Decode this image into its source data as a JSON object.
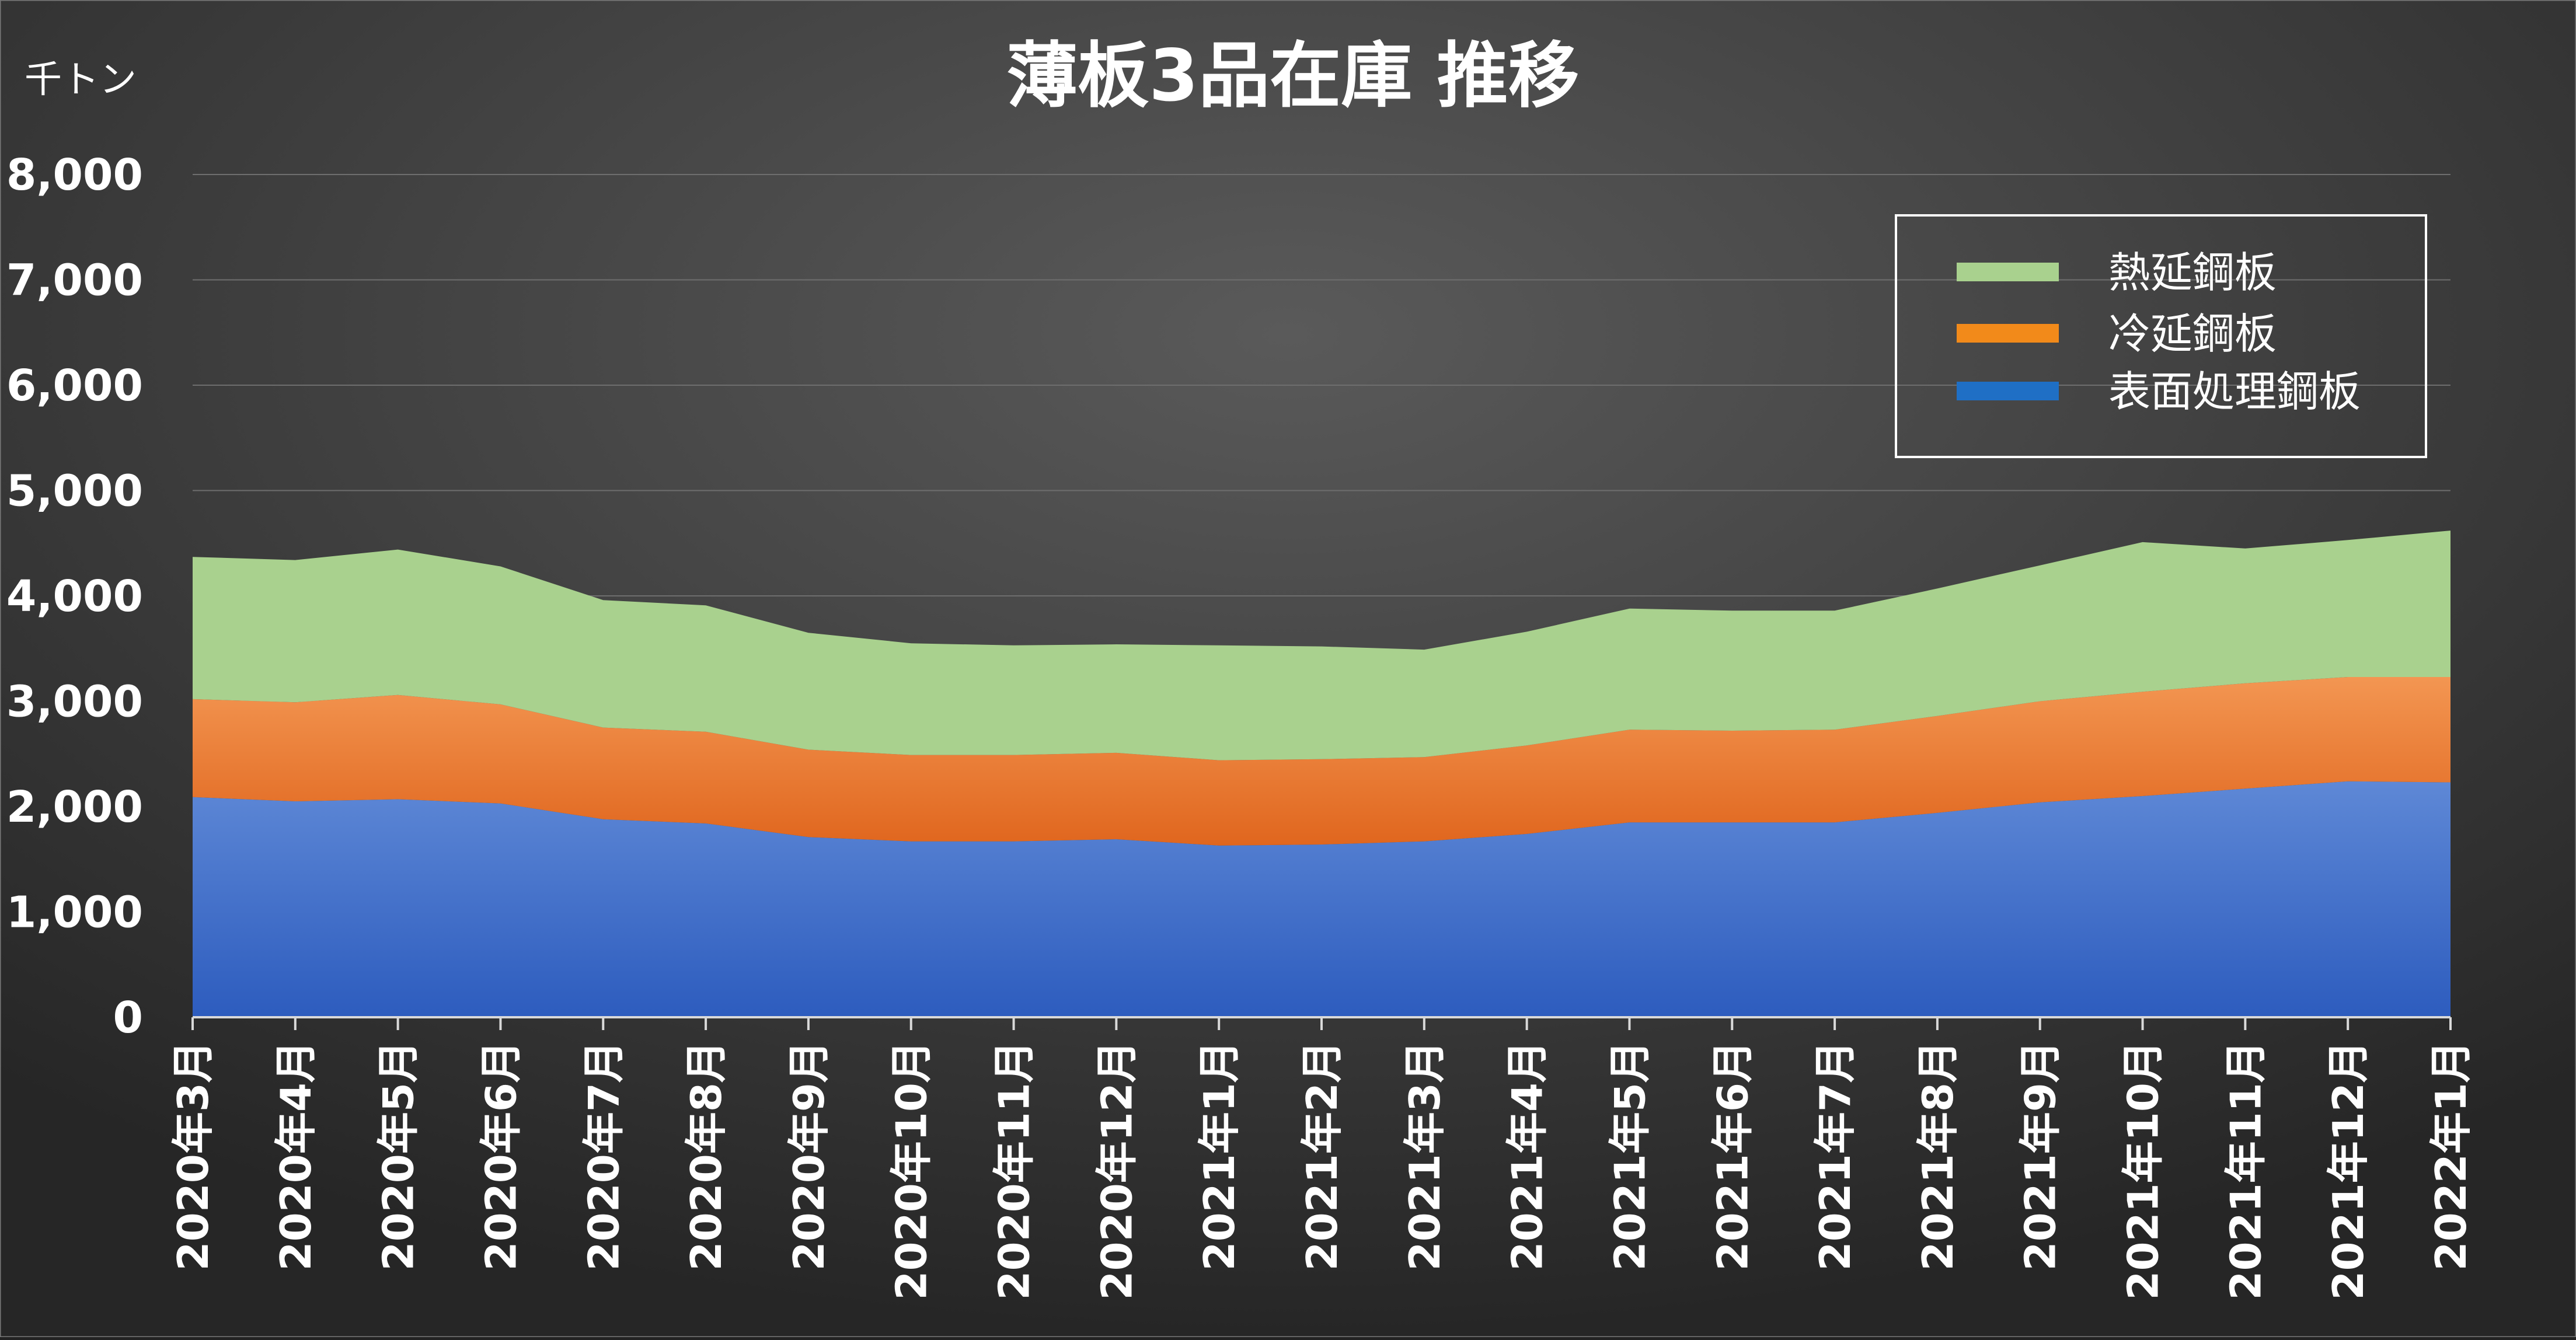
{
  "chart_data": {
    "type": "area",
    "stacked": true,
    "title": "薄板3品在庫 推移",
    "unit_label": "千トン",
    "ylim": [
      0,
      8000
    ],
    "yticks": [
      0,
      1000,
      2000,
      3000,
      4000,
      5000,
      6000,
      7000,
      8000
    ],
    "ytick_labels": [
      "0",
      "1,000",
      "2,000",
      "3,000",
      "4,000",
      "5,000",
      "6,000",
      "7,000",
      "8,000"
    ],
    "grid": true,
    "legend_position": "top-right",
    "categories": [
      "2020年3月",
      "2020年4月",
      "2020年5月",
      "2020年6月",
      "2020年7月",
      "2020年8月",
      "2020年9月",
      "2020年10月",
      "2020年11月",
      "2020年12月",
      "2021年1月",
      "2021年2月",
      "2021年3月",
      "2021年4月",
      "2021年5月",
      "2021年6月",
      "2021年7月",
      "2021年8月",
      "2021年9月",
      "2021年10月",
      "2021年11月",
      "2021年12月",
      "2022年1月"
    ],
    "series": [
      {
        "name": "表面処理鋼板",
        "color": "#3B6BC4",
        "legend_color": "#1F6FC5",
        "values": [
          2090,
          2050,
          2070,
          2030,
          1880,
          1840,
          1710,
          1670,
          1670,
          1690,
          1630,
          1640,
          1670,
          1740,
          1850,
          1850,
          1850,
          1940,
          2040,
          2100,
          2170,
          2240,
          2230
        ]
      },
      {
        "name": "冷延鋼板",
        "color": "#EC7A2E",
        "legend_color": "#F28A1A",
        "values": [
          930,
          940,
          990,
          940,
          870,
          870,
          830,
          820,
          820,
          820,
          810,
          810,
          800,
          840,
          880,
          870,
          880,
          920,
          960,
          990,
          1000,
          990,
          1000
        ]
      },
      {
        "name": "熱延鋼板",
        "color": "#A9D18E",
        "legend_color": "#A9D18E",
        "values": [
          1350,
          1350,
          1380,
          1310,
          1210,
          1200,
          1110,
          1060,
          1040,
          1030,
          1090,
          1070,
          1020,
          1080,
          1150,
          1140,
          1130,
          1210,
          1290,
          1420,
          1280,
          1300,
          1390
        ]
      }
    ],
    "legend_order": [
      "熱延鋼板",
      "冷延鋼板",
      "表面処理鋼板"
    ]
  }
}
